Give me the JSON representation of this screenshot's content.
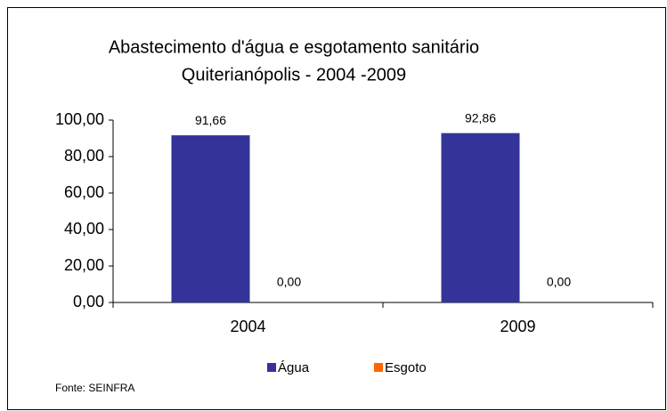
{
  "chart_data": {
    "type": "bar",
    "title": [
      "Abastecimento d'água e esgotamento sanitário",
      "Quiterianópolis - 2004 -2009"
    ],
    "categories": [
      "2004",
      "2009"
    ],
    "series": [
      {
        "name": "Água",
        "color": "#333399",
        "values": [
          91.66,
          92.86
        ],
        "value_labels": [
          "91,66",
          "92,86"
        ]
      },
      {
        "name": "Esgoto",
        "color": "#ff6600",
        "values": [
          0,
          0
        ],
        "value_labels": [
          "0,00",
          "0,00"
        ]
      }
    ],
    "ylim": [
      0,
      100
    ],
    "yticks": [
      {
        "value": 0,
        "label": "0,00"
      },
      {
        "value": 20,
        "label": "20,00"
      },
      {
        "value": 40,
        "label": "40,00"
      },
      {
        "value": 60,
        "label": "60,00"
      },
      {
        "value": 80,
        "label": "80,00"
      },
      {
        "value": 100,
        "label": "100,00"
      }
    ],
    "legend": "bottom",
    "source": "Fonte: SEINFRA"
  }
}
